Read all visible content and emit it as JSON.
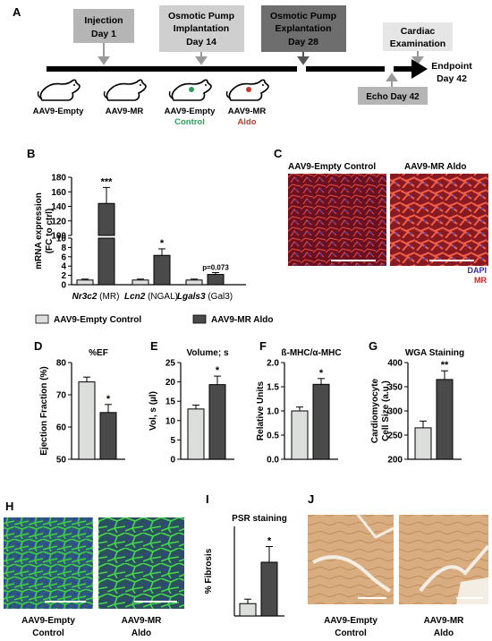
{
  "panel_letters": {
    "A": "A",
    "B": "B",
    "C": "C",
    "D": "D",
    "E": "E",
    "F": "F",
    "G": "G",
    "H": "H",
    "I": "I",
    "J": "J"
  },
  "timeline": {
    "injection": [
      "Injection",
      "Day 1"
    ],
    "implant": [
      "Osmotic Pump",
      "Implantation",
      "Day 14"
    ],
    "explant": [
      "Osmotic Pump",
      "Explantation",
      "Day 28"
    ],
    "cardiac": [
      "Cardiac",
      "Examination"
    ],
    "echo": "Echo Day 42",
    "endpoint": [
      "Endpoint",
      "Day 42"
    ],
    "mice": [
      "AAV9-Empty",
      "AAV9-MR",
      "AAV9-Empty",
      "AAV9-MR"
    ],
    "mice_sub": [
      "Control",
      "Aldo"
    ],
    "colors": {
      "control_green": "#2e9e5a",
      "aldo_red": "#c0392b"
    }
  },
  "legend": {
    "control": "AAV9-Empty Control",
    "aldo": "AAV9-MR Aldo"
  },
  "bar_colors": {
    "control": "#dcdedc",
    "aldo": "#4a4a4a"
  },
  "panelC": {
    "left": "AAV9-Empty Control",
    "right": "AAV9-MR Aldo",
    "stain1": "DAPI",
    "stain2": "MR"
  },
  "panelH": {
    "left": [
      "AAV9-Empty",
      "Control"
    ],
    "right": [
      "AAV9-MR",
      "Aldo"
    ]
  },
  "panelJ": {
    "left": [
      "AAV9-Empty",
      "Control"
    ],
    "right": [
      "AAV9-MR",
      "Aldo"
    ]
  },
  "chart_data": [
    {
      "id": "B",
      "type": "bar",
      "title": "",
      "ylabel": "mRNA expression (FC to ctrl)",
      "broken_axis": true,
      "upper_ticks": [
        100,
        120,
        140,
        160,
        180
      ],
      "lower_ticks": [
        0,
        2,
        4,
        6,
        8,
        10
      ],
      "categories": [
        [
          "Nr3c2",
          " (MR)"
        ],
        [
          "Lcn2",
          " (NGAL)"
        ],
        [
          "Lgals3",
          " (Gal3)"
        ]
      ],
      "series": [
        {
          "name": "AAV9-Empty Control",
          "values": [
            1,
            1,
            1
          ],
          "errors": [
            0.2,
            0.2,
            0.2
          ]
        },
        {
          "name": "AAV9-MR Aldo",
          "values": [
            144,
            6.3,
            2.2
          ],
          "errors": [
            22,
            1.4,
            0.4
          ]
        }
      ],
      "annotations": [
        "***",
        "*",
        "p=0.073"
      ]
    },
    {
      "id": "D",
      "type": "bar",
      "title": "%EF",
      "ylabel": "Ejection Fraction (%)",
      "ylim": [
        50,
        80
      ],
      "yticks": [
        50,
        60,
        70,
        80
      ],
      "values": [
        74,
        64.5
      ],
      "errors": [
        1.5,
        2.5
      ],
      "annotation": "*"
    },
    {
      "id": "E",
      "type": "bar",
      "title": "Volume; s",
      "ylabel": "Vol, s (µl)",
      "ylim": [
        0,
        25
      ],
      "yticks": [
        0,
        5,
        10,
        15,
        20,
        25
      ],
      "values": [
        13,
        19.3
      ],
      "errors": [
        1,
        2.2
      ],
      "annotation": "*"
    },
    {
      "id": "F",
      "type": "bar",
      "title": "ß-MHC/α-MHC",
      "ylabel": "Relative Units",
      "ylim": [
        0,
        2
      ],
      "yticks": [
        0.0,
        0.5,
        1.0,
        1.5,
        2.0
      ],
      "values": [
        1.0,
        1.55
      ],
      "errors": [
        0.08,
        0.12
      ],
      "annotation": "*"
    },
    {
      "id": "G",
      "type": "bar",
      "title": "WGA Staining",
      "ylabel": "Cardiomyocyte Cell Size (a.u.)",
      "ylim": [
        200,
        400
      ],
      "yticks": [
        200,
        250,
        300,
        350,
        400
      ],
      "values": [
        265,
        365
      ],
      "errors": [
        14,
        18
      ],
      "annotation": "**"
    },
    {
      "id": "I",
      "type": "bar",
      "title": "PSR staining",
      "ylabel": "% Fibrosis",
      "ylim": [
        0,
        40
      ],
      "yticks": [],
      "values": [
        5.5,
        24
      ],
      "errors": [
        2,
        7
      ],
      "annotation": "*"
    }
  ]
}
